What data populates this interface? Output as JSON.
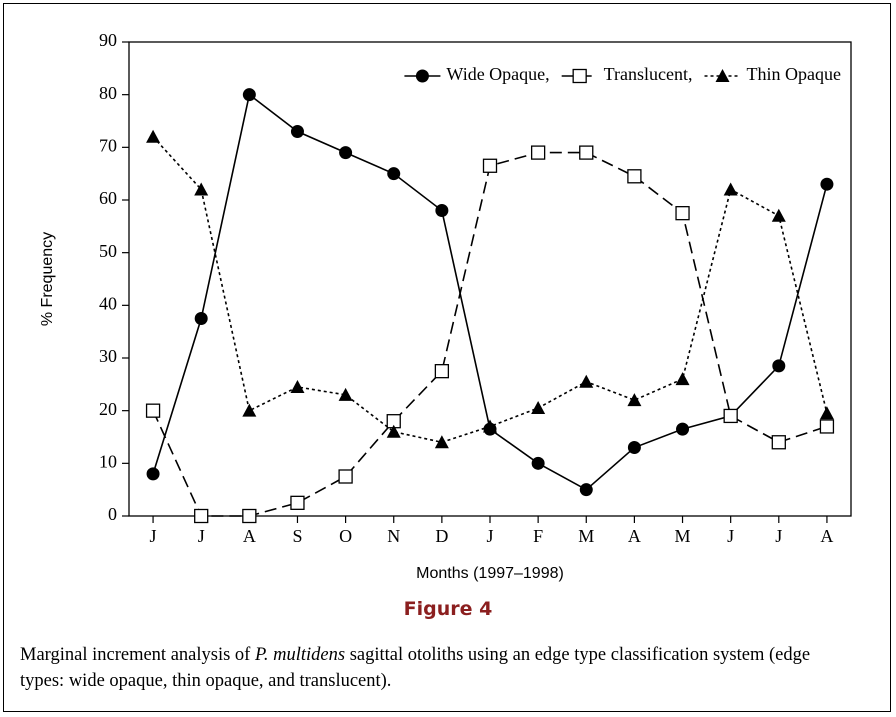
{
  "chart_data": {
    "type": "line",
    "categories": [
      "J",
      "J",
      "A",
      "S",
      "O",
      "N",
      "D",
      "J",
      "F",
      "M",
      "A",
      "M",
      "J",
      "J",
      "A"
    ],
    "xlabel": "Months (1997–1998)",
    "ylabel": "% Frequency",
    "ylim": [
      0,
      90
    ],
    "yticks": [
      0,
      10,
      20,
      30,
      40,
      50,
      60,
      70,
      80,
      90
    ],
    "legend": "top-right",
    "series": [
      {
        "name": "Wide Opaque,",
        "color": "#000000",
        "marker": "circle",
        "dash": "solid",
        "values": [
          8,
          37.5,
          80,
          73,
          69,
          65,
          58,
          16.5,
          10,
          5,
          13,
          16.5,
          19,
          28.5,
          63
        ]
      },
      {
        "name": "Translucent,",
        "color": "#000000",
        "marker": "square",
        "dash": "dashed",
        "values": [
          20,
          0,
          0,
          2.5,
          7.5,
          18,
          27.5,
          66.5,
          69,
          69,
          64.5,
          57.5,
          19,
          14,
          17
        ]
      },
      {
        "name": "Thin Opaque",
        "color": "#000000",
        "marker": "triangle",
        "dash": "dotted",
        "values": [
          72,
          62,
          20,
          24.5,
          23,
          16,
          14,
          17,
          20.5,
          25.5,
          22,
          26,
          62,
          57,
          19.5
        ]
      }
    ]
  },
  "figure": {
    "label": "Figure 4",
    "caption": [
      "Marginal increment analysis of ",
      "P. multidens",
      " sagittal otoliths using an edge type classification system (edge types: wide opaque, thin opaque, and translucent)."
    ]
  }
}
